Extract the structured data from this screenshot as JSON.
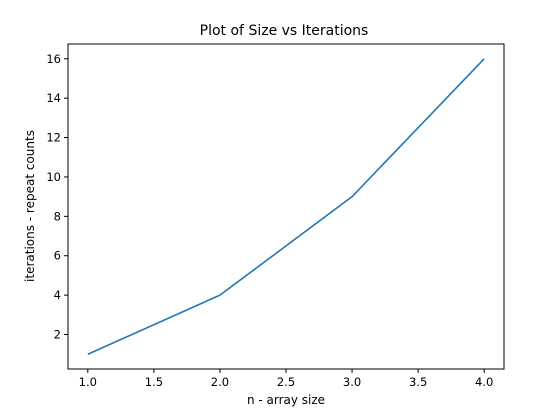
{
  "chart_data": {
    "type": "line",
    "title": "Plot of Size vs Iterations",
    "xlabel": "n - array size",
    "ylabel": "iterations - repeat counts",
    "x": [
      1.0,
      2.0,
      3.0,
      4.0
    ],
    "series": [
      {
        "values": [
          1,
          4,
          9,
          16
        ],
        "color": "#1f77b4"
      }
    ],
    "xlim": [
      0.85,
      4.15
    ],
    "ylim": [
      0.25,
      16.75
    ],
    "xticks": [
      1.0,
      1.5,
      2.0,
      2.5,
      3.0,
      3.5,
      4.0
    ],
    "xtick_labels": [
      "1.0",
      "1.5",
      "2.0",
      "2.5",
      "3.0",
      "3.5",
      "4.0"
    ],
    "yticks": [
      2,
      4,
      6,
      8,
      10,
      12,
      14,
      16
    ],
    "ytick_labels": [
      "2",
      "4",
      "6",
      "8",
      "10",
      "12",
      "14",
      "16"
    ],
    "grid": false,
    "legend": "none"
  }
}
